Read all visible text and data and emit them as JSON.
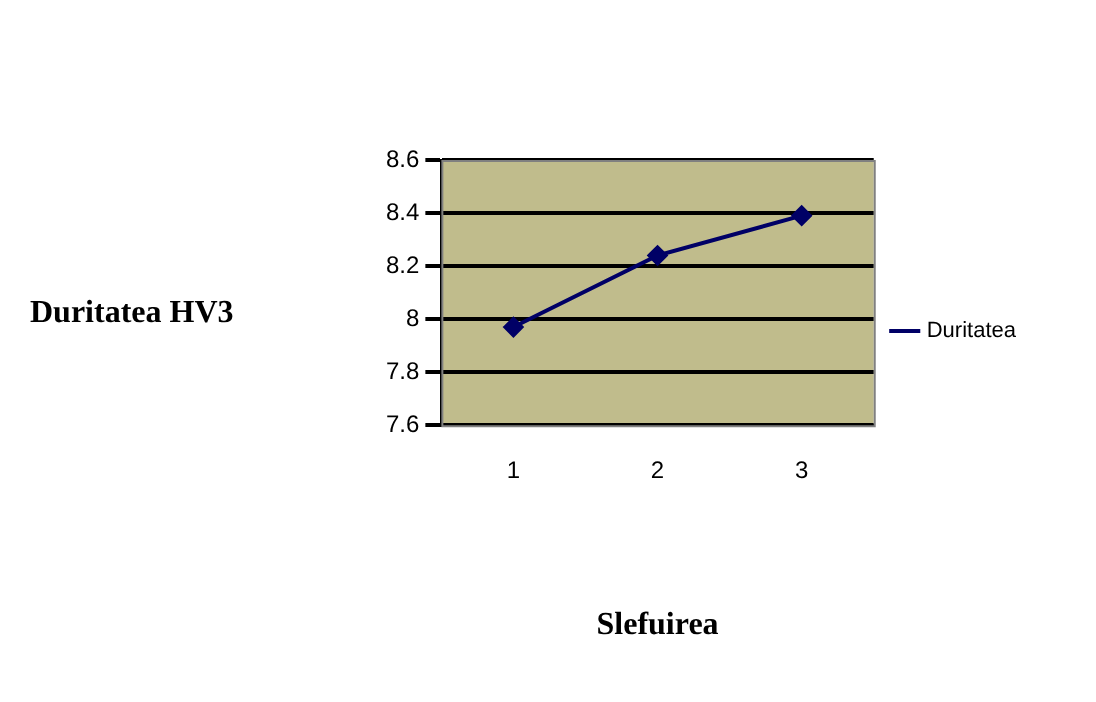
{
  "chart_data": {
    "type": "line",
    "xlabel": "Slefuirea",
    "ylabel": "Duritatea HV3",
    "categories": [
      "1",
      "2",
      "3"
    ],
    "series": [
      {
        "name": "Duritatea",
        "color": "#000066",
        "values": [
          7.97,
          8.24,
          8.39
        ]
      }
    ],
    "ylim": [
      7.6,
      8.6
    ],
    "yticks": [
      7.6,
      7.8,
      8,
      8.2,
      8.4,
      8.6
    ],
    "grid": "y",
    "legend": "right",
    "marker": "diamond",
    "line_style": "solid"
  }
}
